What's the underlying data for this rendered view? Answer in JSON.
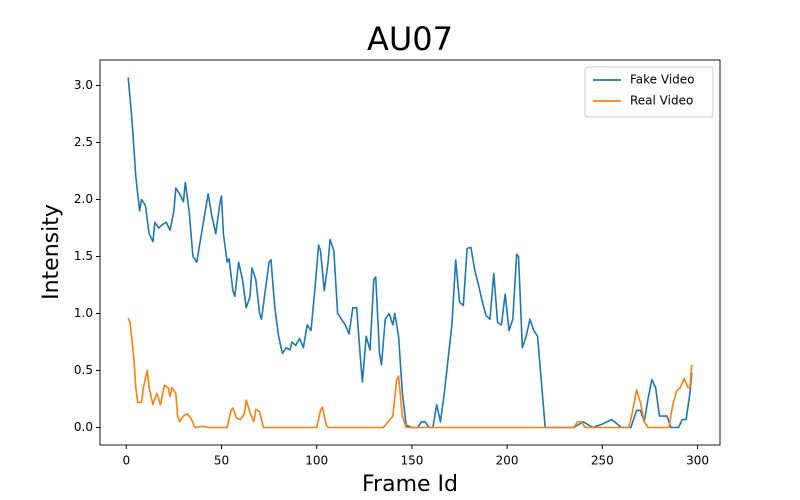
{
  "chart_data": {
    "type": "line",
    "title": "AU07",
    "xlabel": "Frame Id",
    "ylabel": "Intensity",
    "xlim": [
      -13.8,
      311.8
    ],
    "ylim": [
      -0.1535,
      3.2235
    ],
    "xticks": [
      0,
      50,
      100,
      150,
      200,
      250,
      300
    ],
    "yticks": [
      {
        "value": 0,
        "label": "0.0"
      },
      {
        "value": 0.5,
        "label": "0.5"
      },
      {
        "value": 1,
        "label": "1.0"
      },
      {
        "value": 1.5,
        "label": "1.5"
      },
      {
        "value": 2,
        "label": "2.0"
      },
      {
        "value": 2.5,
        "label": "2.5"
      },
      {
        "value": 3,
        "label": "3.0"
      }
    ],
    "legend": "upper right",
    "grid": false,
    "series": [
      {
        "name": "Fake Video",
        "color": "#1f77b4",
        "x": [
          1,
          3,
          5,
          7,
          8,
          10,
          12,
          14,
          15,
          17,
          19,
          21,
          23,
          25,
          26,
          28,
          30,
          31,
          33,
          35,
          37,
          39,
          41,
          43,
          45,
          47,
          49,
          50,
          51,
          53,
          54,
          56,
          57,
          59,
          61,
          63,
          65,
          66,
          68,
          70,
          71,
          73,
          75,
          76,
          78,
          80,
          82,
          84,
          86,
          87,
          89,
          91,
          93,
          95,
          97,
          99,
          101,
          102,
          104,
          106,
          107,
          109,
          111,
          113,
          115,
          117,
          119,
          121,
          123,
          124,
          126,
          128,
          130,
          131,
          133,
          134,
          136,
          138,
          140,
          141,
          143,
          145,
          147,
          150,
          153,
          155,
          157,
          159,
          161,
          163,
          165,
          167,
          169,
          171,
          173,
          175,
          177,
          179,
          181,
          183,
          185,
          187,
          189,
          191,
          193,
          195,
          197,
          199,
          201,
          203,
          205,
          206,
          208,
          210,
          212,
          214,
          216,
          218,
          220,
          225,
          230,
          235,
          240,
          245,
          250,
          255,
          260,
          265,
          267,
          268,
          270,
          272,
          274,
          276,
          278,
          280,
          282,
          284,
          286,
          290,
          292,
          294,
          296,
          297
        ],
        "values": [
          3.07,
          2.7,
          2.2,
          1.9,
          2.0,
          1.95,
          1.7,
          1.63,
          1.8,
          1.75,
          1.78,
          1.8,
          1.73,
          1.9,
          2.1,
          2.05,
          1.98,
          2.15,
          1.9,
          1.5,
          1.45,
          1.65,
          1.85,
          2.05,
          1.85,
          1.7,
          1.95,
          2.03,
          1.7,
          1.45,
          1.48,
          1.2,
          1.15,
          1.45,
          1.3,
          1.05,
          1.15,
          1.4,
          1.3,
          1.0,
          0.95,
          1.2,
          1.45,
          1.47,
          1.05,
          0.8,
          0.65,
          0.7,
          0.68,
          0.75,
          0.72,
          0.78,
          0.7,
          0.9,
          0.85,
          1.2,
          1.6,
          1.55,
          1.2,
          1.45,
          1.65,
          1.55,
          1.0,
          0.95,
          0.9,
          0.82,
          1.05,
          1.05,
          0.6,
          0.4,
          0.8,
          0.68,
          1.3,
          1.32,
          0.65,
          0.55,
          0.95,
          1.0,
          0.9,
          1.0,
          0.8,
          0.3,
          0.02,
          0.0,
          0.0,
          0.05,
          0.05,
          0.0,
          0.0,
          0.2,
          0.05,
          0.3,
          0.6,
          0.9,
          1.47,
          1.1,
          1.07,
          1.57,
          1.58,
          1.38,
          1.25,
          1.1,
          0.98,
          0.95,
          1.35,
          0.92,
          0.9,
          1.17,
          0.85,
          0.95,
          1.52,
          1.5,
          0.7,
          0.8,
          0.95,
          0.85,
          0.8,
          0.4,
          0.0,
          0.0,
          0.0,
          0.0,
          0.05,
          0.0,
          0.03,
          0.07,
          0.0,
          0.0,
          0.1,
          0.15,
          0.15,
          0.05,
          0.25,
          0.42,
          0.35,
          0.1,
          0.1,
          0.1,
          0.0,
          0.0,
          0.07,
          0.07,
          0.3,
          0.48
        ]
      },
      {
        "name": "Real Video",
        "color": "#ff7f0e",
        "x": [
          1,
          2,
          4,
          5,
          6,
          8,
          9,
          11,
          12,
          14,
          16,
          18,
          20,
          22,
          23,
          24,
          26,
          27,
          28,
          30,
          32,
          34,
          36,
          40,
          44,
          50,
          53,
          55,
          56,
          58,
          60,
          62,
          63,
          65,
          67,
          68,
          70,
          72,
          80,
          90,
          100,
          102,
          103,
          105,
          106,
          115,
          125,
          135,
          140,
          142,
          143,
          145,
          147,
          160,
          180,
          200,
          220,
          235,
          237,
          239,
          241,
          250,
          260,
          264,
          266,
          268,
          270,
          272,
          274,
          285,
          287,
          289,
          291,
          293,
          295,
          296,
          297
        ],
        "values": [
          0.96,
          0.92,
          0.6,
          0.35,
          0.22,
          0.22,
          0.35,
          0.5,
          0.35,
          0.2,
          0.3,
          0.2,
          0.37,
          0.35,
          0.27,
          0.35,
          0.3,
          0.1,
          0.05,
          0.1,
          0.12,
          0.08,
          0.0,
          0.01,
          0.0,
          0.0,
          0.0,
          0.15,
          0.17,
          0.08,
          0.07,
          0.12,
          0.24,
          0.13,
          0.05,
          0.16,
          0.14,
          0.0,
          0.0,
          0.0,
          0.0,
          0.15,
          0.18,
          0.02,
          0.0,
          0.0,
          0.0,
          0.0,
          0.1,
          0.42,
          0.45,
          0.1,
          0.0,
          0.0,
          0.0,
          0.0,
          0.0,
          0.0,
          0.05,
          0.05,
          0.0,
          0.0,
          0.0,
          0.0,
          0.15,
          0.33,
          0.22,
          0.05,
          0.0,
          0.0,
          0.2,
          0.32,
          0.35,
          0.43,
          0.35,
          0.35,
          0.55
        ]
      }
    ]
  }
}
